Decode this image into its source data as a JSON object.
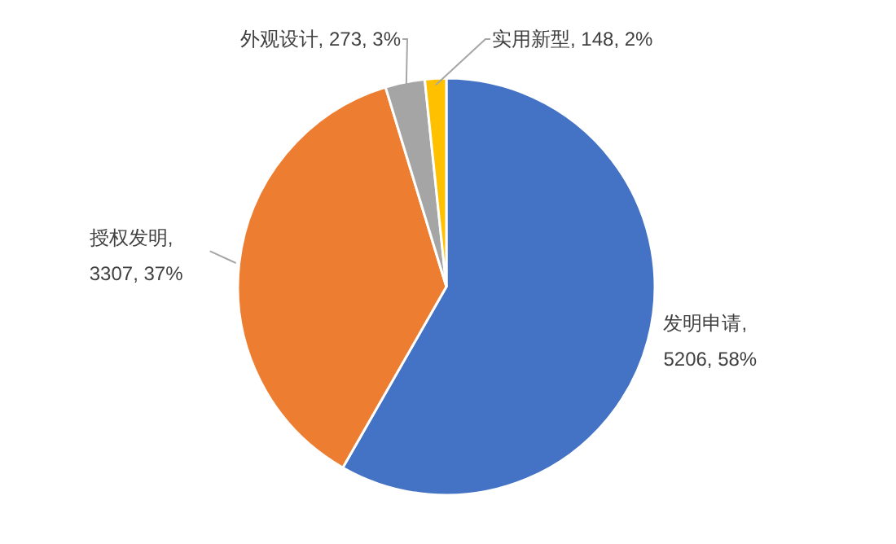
{
  "chart_data": {
    "type": "pie",
    "categories": [
      "发明申请",
      "授权发明",
      "外观设计",
      "实用新型"
    ],
    "values": [
      5206,
      3307,
      273,
      148
    ],
    "colors": [
      "#4472c4",
      "#ed7d31",
      "#a5a5a5",
      "#ffc000"
    ],
    "value_labels": [
      ", 5206, 58%",
      ", 3307, 37%",
      ", 273, 3%",
      ", 148, 2%"
    ]
  }
}
